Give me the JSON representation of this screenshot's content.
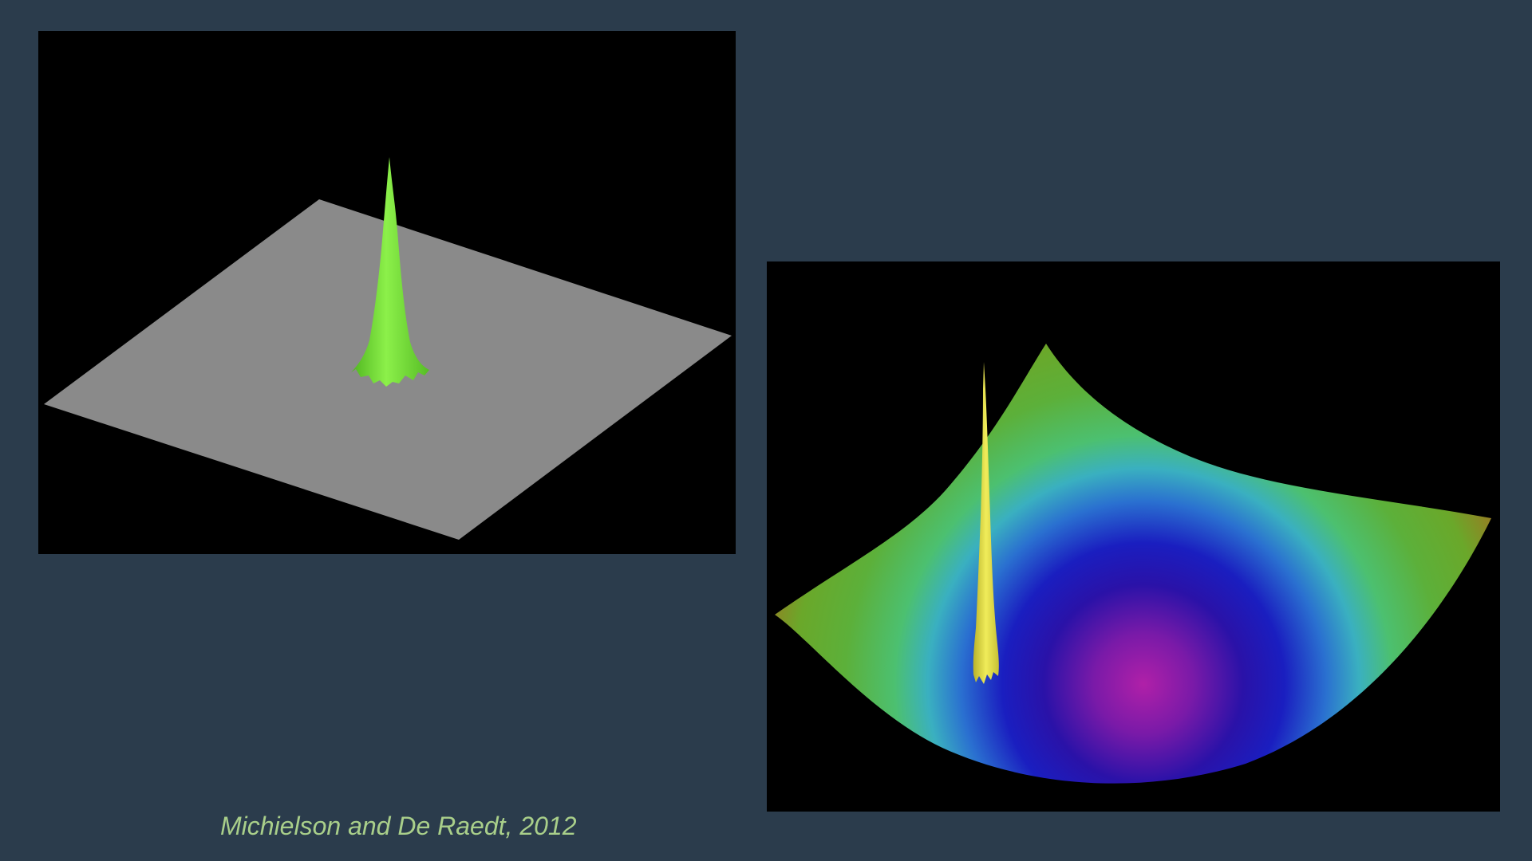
{
  "citation": "Michielson and De Raedt, 2012",
  "colors": {
    "background": "#2b3c4c",
    "panel_background": "#000000",
    "caption_text": "#a9cf8a",
    "flat_plane": "#8a8a8a",
    "left_peak": "#7ee03a",
    "right_peak": "#e4e04a"
  },
  "panels": [
    {
      "name": "flat-plane-with-peak",
      "description_icon": "surface-plot-icon"
    },
    {
      "name": "bowl-potential-with-peak",
      "description_icon": "surface-plot-icon"
    }
  ]
}
